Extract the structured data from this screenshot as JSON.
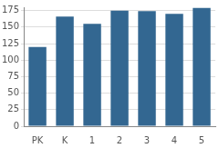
{
  "chart_data": {
    "type": "bar",
    "categories": [
      "PK",
      "K",
      "1",
      "2",
      "3",
      "4",
      "5"
    ],
    "values": [
      120,
      166,
      155,
      175,
      174,
      170,
      179
    ],
    "color": "#336791",
    "ylim": [
      0,
      180
    ],
    "yticks": [
      0,
      25,
      50,
      75,
      100,
      125,
      150,
      175
    ],
    "grid": true
  }
}
